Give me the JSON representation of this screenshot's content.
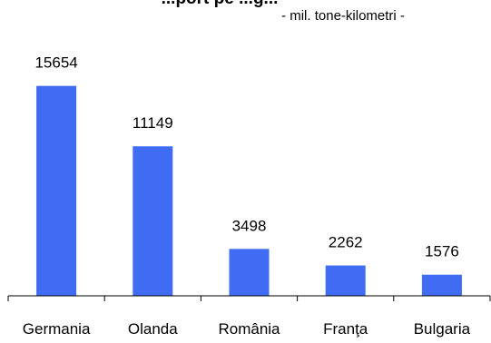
{
  "chart_data": {
    "type": "bar",
    "title": "...port pe ...g...",
    "subtitle": "- mil. tone-kilometri -",
    "categories": [
      "Germania",
      "Olanda",
      "România",
      "Franţa",
      "Bulgaria"
    ],
    "values": [
      15654,
      11149,
      3498,
      2262,
      1576
    ],
    "data_labels": [
      "15654",
      "11149",
      "3498",
      "2262",
      "1576"
    ],
    "ylim": [
      0,
      18000
    ],
    "grid": false,
    "legend": "none",
    "bar_color": "#3F6CF2",
    "axis_color": "#000000"
  }
}
